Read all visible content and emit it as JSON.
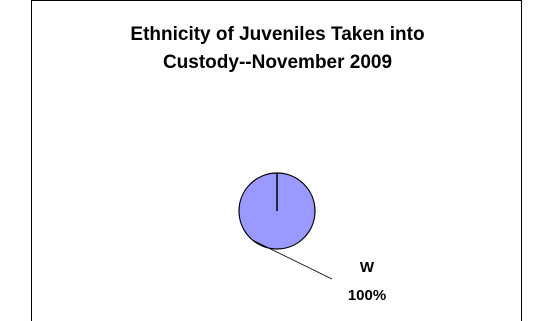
{
  "chart_data": {
    "type": "pie",
    "title_lines": [
      "Ethnicity of Juveniles Taken into",
      "Custody--November 2009"
    ],
    "slices": [
      {
        "label": "W",
        "value": 100,
        "percent_label": "100%",
        "color": "#9999ff"
      }
    ],
    "edge_color": "#000000",
    "label_placement": "outside-lower-right"
  }
}
